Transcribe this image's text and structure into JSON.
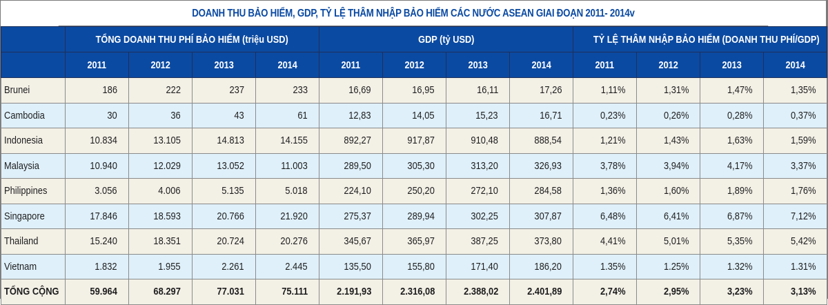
{
  "title": "DOANH THU BẢO HIỂM, GDP, TỶ LỆ THÂM NHẬP BẢO HIỂM CÁC NƯỚC ASEAN GIAI ĐOẠN 2011- 2014v",
  "colors": {
    "header_bg": "#0b4aa2",
    "title_text": "#0b4aa2",
    "row_beige": "#f3f0e6",
    "row_blue": "#dff0fa"
  },
  "groups": [
    {
      "label": "TỔNG DOANH THU PHÍ BẢO HIỂM (triệu USD)"
    },
    {
      "label": "GDP (tỷ USD)"
    },
    {
      "label": "TỶ LỆ THÂM NHẬP BẢO HIỂM (DOANH THU PHÍ/GDP)"
    }
  ],
  "years": [
    "2011",
    "2012",
    "2013",
    "2014",
    "2011",
    "2012",
    "2013",
    "2014",
    "2011",
    "2012",
    "2013",
    "2014"
  ],
  "rows": [
    {
      "country": "Brunei",
      "values": [
        "186",
        "222",
        "237",
        "233",
        "16,69",
        "16,95",
        "16,11",
        "17,26",
        "1,11%",
        "1,31%",
        "1,47%",
        "1,35%"
      ]
    },
    {
      "country": "Cambodia",
      "values": [
        "30",
        "36",
        "43",
        "61",
        "12,83",
        "14,05",
        "15,23",
        "16,71",
        "0,23%",
        "0,26%",
        "0,28%",
        "0,37%"
      ]
    },
    {
      "country": "Indonesia",
      "values": [
        "10.834",
        "13.105",
        "14.813",
        "14.155",
        "892,27",
        "917,87",
        "910,48",
        "888,54",
        "1,21%",
        "1,43%",
        "1,63%",
        "1,59%"
      ]
    },
    {
      "country": "Malaysia",
      "values": [
        "10.940",
        "12.029",
        "13.052",
        "11.003",
        "289,50",
        "305,30",
        "313,20",
        "326,93",
        "3,78%",
        "3,94%",
        "4,17%",
        "3,37%"
      ]
    },
    {
      "country": "Philippines",
      "values": [
        "3.056",
        "4.006",
        "5.135",
        "5.018",
        "224,10",
        "250,20",
        "272,10",
        "284,58",
        "1,36%",
        "1,60%",
        "1,89%",
        "1,76%"
      ]
    },
    {
      "country": "Singapore",
      "values": [
        "17.846",
        "18.593",
        "20.766",
        "21.920",
        "275,37",
        "289,94",
        "302,25",
        "307,87",
        "6,48%",
        "6,41%",
        "6,87%",
        "7,12%"
      ]
    },
    {
      "country": "Thailand",
      "values": [
        "15.240",
        "18.351",
        "20.724",
        "20.276",
        "345,67",
        "365,97",
        "387,25",
        "373,80",
        "4,41%",
        "5,01%",
        "5,35%",
        "5,42%"
      ]
    },
    {
      "country": "Vietnam",
      "values": [
        "1.832",
        "1.955",
        "2.261",
        "2.445",
        "135,50",
        "155,80",
        "171,40",
        "186,20",
        "1.35%",
        "1.25%",
        "1.32%",
        "1.31%"
      ]
    }
  ],
  "total": {
    "label": "TỔNG CỘNG",
    "values": [
      "59.964",
      "68.297",
      "77.031",
      "75.111",
      "2.191,93",
      "2.316,08",
      "2.388,02",
      "2.401,89",
      "2,74%",
      "2,95%",
      "3,23%",
      "3,13%"
    ]
  }
}
